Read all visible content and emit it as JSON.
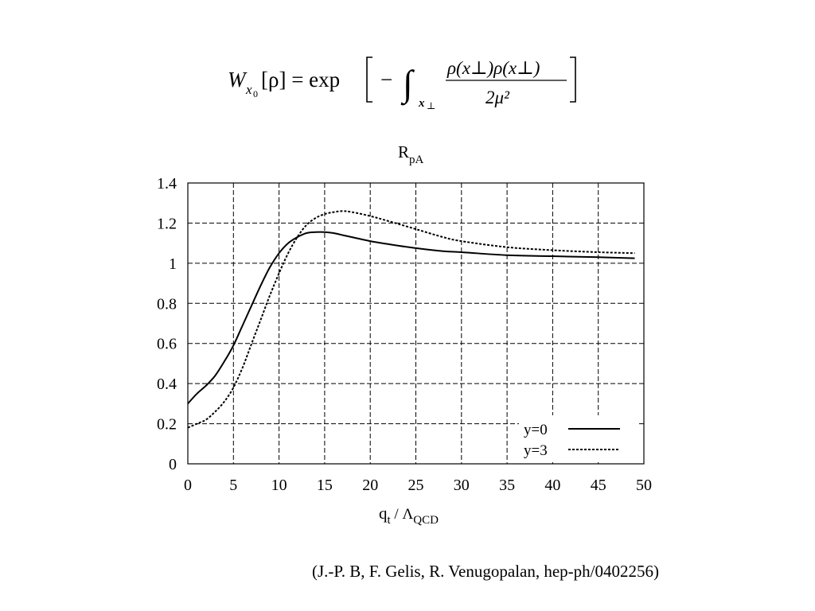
{
  "formula": {
    "lhs_letter": "W",
    "lhs_subscript": "x",
    "lhs_subsub": "0",
    "lhs_arg": "[ρ] = exp",
    "minus": "−",
    "integral": "∫",
    "integral_sub": "x",
    "integral_subsub": "⊥",
    "numerator": "ρ(x⊥)ρ(x⊥)",
    "denominator": "2μ²"
  },
  "chart_data": {
    "type": "line",
    "title": "R",
    "title_subscript": "pA",
    "xlabel": "q",
    "xlabel_sub": "t",
    "xlabel_mid": " / Λ",
    "xlabel_sub2": "QCD",
    "xlim": [
      0,
      50
    ],
    "ylim": [
      0,
      1.4
    ],
    "xticks": [
      0,
      5,
      10,
      15,
      20,
      25,
      30,
      35,
      40,
      45,
      50
    ],
    "yticks": [
      0,
      0.2,
      0.4,
      0.6,
      0.8,
      1,
      1.2,
      1.4
    ],
    "ytick_labels": [
      "0",
      "0.2",
      "0.4",
      "0.6",
      "0.8",
      "1",
      "1.2",
      "1.4"
    ],
    "grid": true,
    "legend_position": "bottom-right",
    "series": [
      {
        "name": "y=0",
        "style": "solid",
        "x": [
          0,
          1,
          2,
          3,
          4,
          5,
          6,
          7,
          8,
          9,
          10,
          11,
          12,
          13,
          14,
          15,
          16,
          17,
          18,
          20,
          22,
          25,
          28,
          30,
          35,
          40,
          45,
          49
        ],
        "y": [
          0.3,
          0.35,
          0.39,
          0.44,
          0.51,
          0.59,
          0.69,
          0.79,
          0.89,
          0.98,
          1.05,
          1.1,
          1.13,
          1.15,
          1.155,
          1.155,
          1.15,
          1.14,
          1.13,
          1.11,
          1.095,
          1.075,
          1.06,
          1.055,
          1.04,
          1.035,
          1.03,
          1.025
        ]
      },
      {
        "name": "y=3",
        "style": "dashed",
        "x": [
          0,
          1,
          2,
          3,
          4,
          5,
          6,
          7,
          8,
          9,
          10,
          11,
          12,
          13,
          14,
          15,
          16,
          17,
          18,
          20,
          22,
          25,
          28,
          30,
          35,
          40,
          45,
          49
        ],
        "y": [
          0.18,
          0.2,
          0.22,
          0.26,
          0.31,
          0.38,
          0.48,
          0.6,
          0.72,
          0.84,
          0.95,
          1.05,
          1.13,
          1.19,
          1.225,
          1.245,
          1.255,
          1.26,
          1.255,
          1.235,
          1.21,
          1.17,
          1.13,
          1.11,
          1.08,
          1.065,
          1.055,
          1.05
        ]
      }
    ]
  },
  "citation": "(J.-P. B, F. Gelis, R. Venugopalan, hep-ph/0402256)"
}
